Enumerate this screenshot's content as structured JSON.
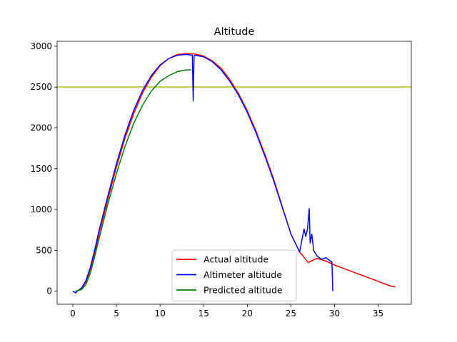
{
  "chart_data": {
    "type": "line",
    "title": "Altitude",
    "xlabel": "",
    "ylabel": "",
    "xlim": [
      -1.8,
      38.8
    ],
    "ylim": [
      -160,
      3060
    ],
    "xticks": [
      0,
      5,
      10,
      15,
      20,
      25,
      30,
      35
    ],
    "yticks": [
      0,
      500,
      1000,
      1500,
      2000,
      2500,
      3000
    ],
    "grid": false,
    "legend_position": "lower-center",
    "hline": {
      "y": 2500,
      "color": "#bfbf00"
    },
    "series": [
      {
        "name": "Actual altitude",
        "color": "#ff0000",
        "points": [
          [
            0.3,
            0
          ],
          [
            0.6,
            5
          ],
          [
            1.0,
            30
          ],
          [
            1.5,
            110
          ],
          [
            2.0,
            260
          ],
          [
            2.5,
            450
          ],
          [
            3.0,
            700
          ],
          [
            4,
            1120
          ],
          [
            5,
            1520
          ],
          [
            6,
            1880
          ],
          [
            7,
            2180
          ],
          [
            8,
            2430
          ],
          [
            9,
            2620
          ],
          [
            10,
            2760
          ],
          [
            11,
            2850
          ],
          [
            12,
            2900
          ],
          [
            13,
            2910
          ],
          [
            14,
            2905
          ],
          [
            15,
            2880
          ],
          [
            16,
            2820
          ],
          [
            17,
            2730
          ],
          [
            18,
            2590
          ],
          [
            19,
            2420
          ],
          [
            20,
            2210
          ],
          [
            21,
            1960
          ],
          [
            22,
            1680
          ],
          [
            23,
            1380
          ],
          [
            24,
            1040
          ],
          [
            25,
            700
          ],
          [
            26,
            480
          ],
          [
            27,
            350
          ],
          [
            27.5,
            380
          ],
          [
            28,
            400
          ],
          [
            29,
            370
          ],
          [
            30,
            320
          ],
          [
            31,
            280
          ],
          [
            32,
            240
          ],
          [
            33,
            200
          ],
          [
            34,
            160
          ],
          [
            35,
            120
          ],
          [
            36,
            80
          ],
          [
            36.5,
            60
          ],
          [
            37,
            55
          ]
        ]
      },
      {
        "name": "Altimeter altitude",
        "color": "#0000ff",
        "points": [
          [
            0,
            0
          ],
          [
            0.3,
            -20
          ],
          [
            0.5,
            0
          ],
          [
            1.0,
            40
          ],
          [
            1.5,
            130
          ],
          [
            2.0,
            290
          ],
          [
            2.5,
            500
          ],
          [
            3.0,
            740
          ],
          [
            4,
            1160
          ],
          [
            5,
            1560
          ],
          [
            6,
            1920
          ],
          [
            7,
            2220
          ],
          [
            8,
            2460
          ],
          [
            9,
            2640
          ],
          [
            10,
            2770
          ],
          [
            11,
            2850
          ],
          [
            12,
            2890
          ],
          [
            13,
            2900
          ],
          [
            13.7,
            2890
          ],
          [
            13.8,
            2330
          ],
          [
            13.9,
            2880
          ],
          [
            14,
            2890
          ],
          [
            15,
            2870
          ],
          [
            16,
            2810
          ],
          [
            17,
            2710
          ],
          [
            18,
            2570
          ],
          [
            19,
            2400
          ],
          [
            20,
            2190
          ],
          [
            21,
            1940
          ],
          [
            22,
            1660
          ],
          [
            23,
            1360
          ],
          [
            24,
            1030
          ],
          [
            25,
            700
          ],
          [
            26,
            480
          ],
          [
            26.5,
            760
          ],
          [
            26.7,
            670
          ],
          [
            26.9,
            760
          ],
          [
            27.1,
            1010
          ],
          [
            27.2,
            590
          ],
          [
            27.4,
            700
          ],
          [
            27.6,
            500
          ],
          [
            28,
            430
          ],
          [
            28.5,
            390
          ],
          [
            29,
            410
          ],
          [
            29.5,
            370
          ],
          [
            29.7,
            360
          ],
          [
            29.8,
            0
          ]
        ]
      },
      {
        "name": "Predicted altitude",
        "color": "#008000",
        "points": [
          [
            0.3,
            0
          ],
          [
            1.0,
            20
          ],
          [
            1.5,
            80
          ],
          [
            2.0,
            220
          ],
          [
            2.5,
            420
          ],
          [
            3.0,
            640
          ],
          [
            4,
            1060
          ],
          [
            5,
            1440
          ],
          [
            6,
            1780
          ],
          [
            7,
            2060
          ],
          [
            8,
            2280
          ],
          [
            9,
            2450
          ],
          [
            10,
            2570
          ],
          [
            11,
            2640
          ],
          [
            12,
            2690
          ],
          [
            13,
            2710
          ],
          [
            13.6,
            2710
          ]
        ]
      }
    ]
  }
}
